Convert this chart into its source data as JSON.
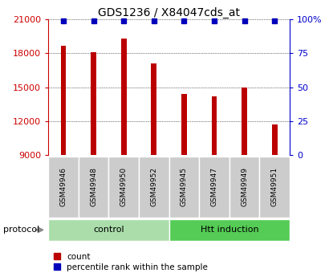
{
  "title": "GDS1236 / X84047cds_at",
  "samples": [
    "GSM49946",
    "GSM49948",
    "GSM49950",
    "GSM49952",
    "GSM49945",
    "GSM49947",
    "GSM49949",
    "GSM49951"
  ],
  "counts": [
    18700,
    18100,
    19300,
    17100,
    14400,
    14200,
    15000,
    11700
  ],
  "percentile_ranks": [
    99,
    99,
    99,
    99,
    99,
    99,
    99,
    99
  ],
  "ymin": 9000,
  "ymax": 21000,
  "yticks": [
    9000,
    12000,
    15000,
    18000,
    21000
  ],
  "right_yticks": [
    0,
    25,
    50,
    75,
    100
  ],
  "right_yticklabels": [
    "0",
    "25",
    "50",
    "75",
    "100%"
  ],
  "bar_color": "#bb0000",
  "dot_color": "#0000bb",
  "bar_width": 0.18,
  "control_label": "control",
  "htt_label": "Htt induction",
  "control_bg": "#aaddaa",
  "htt_bg": "#55cc55",
  "protocol_label": "protocol",
  "legend_count_label": "count",
  "legend_pct_label": "percentile rank within the sample",
  "left_tick_color": "#cc0000",
  "right_tick_color": "#0000cc",
  "title_fontsize": 10,
  "tick_label_fontsize": 8,
  "sample_label_fontsize": 6.5,
  "protocol_fontsize": 8,
  "legend_fontsize": 7.5,
  "sample_box_color": "#cccccc",
  "arrow_color": "#888888"
}
